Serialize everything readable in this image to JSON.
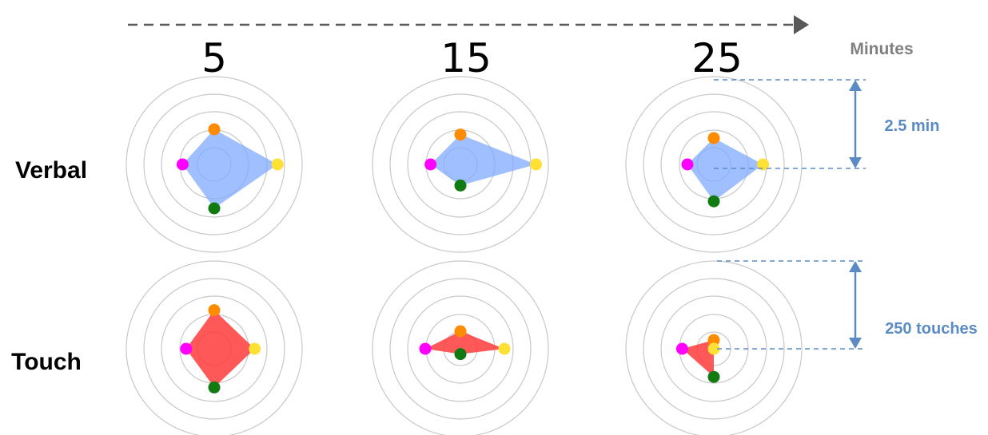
{
  "time_axis": {
    "caption": "Minutes",
    "minutes": [
      "5",
      "15",
      "25"
    ]
  },
  "rows": [
    {
      "id": "verbal",
      "label": "Verbal",
      "fill": "#7faaff"
    },
    {
      "id": "touch",
      "label": "Touch",
      "fill": "#ff3b3b"
    }
  ],
  "scales": [
    {
      "id": "verbal",
      "label": "2.5 min"
    },
    {
      "id": "touch",
      "label": "250 touches"
    }
  ],
  "colors": {
    "ring": "#c8c8c8",
    "axis_arrow": "#595959",
    "scale": "#5b8bc4",
    "caption_grey": "#808080",
    "axis_top": "#ff8c00",
    "axis_right": "#ffe135",
    "axis_bottom": "#117a11",
    "axis_left": "#ff00ff"
  },
  "chart_data": {
    "type": "radar",
    "axes": [
      "top",
      "right",
      "bottom",
      "left"
    ],
    "ring_count": 5,
    "scale_max_rings": 5,
    "panels": [
      {
        "row": "verbal",
        "minute": "5",
        "values": [
          2.0,
          3.6,
          2.5,
          1.8
        ]
      },
      {
        "row": "verbal",
        "minute": "15",
        "values": [
          1.7,
          4.3,
          1.2,
          1.7
        ]
      },
      {
        "row": "verbal",
        "minute": "25",
        "values": [
          1.5,
          2.8,
          2.1,
          1.5
        ]
      },
      {
        "row": "touch",
        "minute": "5",
        "values": [
          2.2,
          2.3,
          2.2,
          1.6
        ]
      },
      {
        "row": "touch",
        "minute": "15",
        "values": [
          1.0,
          2.5,
          0.3,
          2.0
        ]
      },
      {
        "row": "touch",
        "minute": "25",
        "values": [
          0.5,
          0.0,
          1.6,
          1.8
        ]
      }
    ]
  }
}
